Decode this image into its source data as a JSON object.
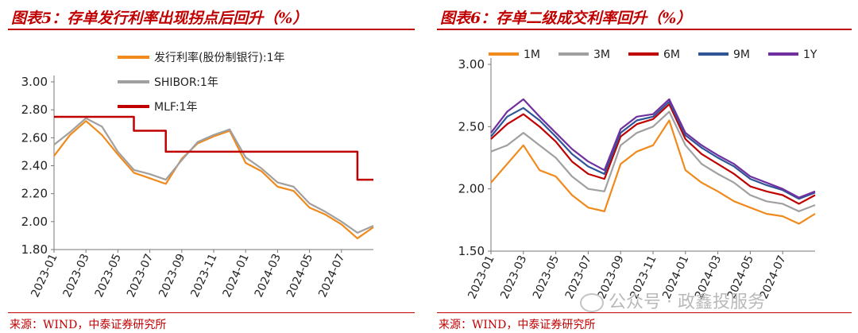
{
  "left": {
    "title": "图表5：存单发行利率出现拐点后回升（%）",
    "source": "来源：WIND，中泰证券研究所"
  },
  "right": {
    "title": "图表6：存单二级成交利率回升（%）",
    "source": "来源：WIND，中泰证券研究所"
  },
  "watermark": "公众号 · 政鑫投服务",
  "chart_data": [
    {
      "type": "line",
      "ylim": [
        1.8,
        3.0
      ],
      "yticks": [
        "1.80",
        "2.00",
        "2.20",
        "2.40",
        "2.60",
        "2.80",
        "3.00"
      ],
      "xticks": [
        "2023-01",
        "2023-03",
        "2023-05",
        "2023-07",
        "2023-09",
        "2023-11",
        "2024-01",
        "2024-03",
        "2024-05",
        "2024-07"
      ],
      "x": [
        "2023-01",
        "2023-02",
        "2023-03",
        "2023-04",
        "2023-05",
        "2023-06",
        "2023-07",
        "2023-08",
        "2023-09",
        "2023-10",
        "2023-11",
        "2023-12",
        "2024-01",
        "2024-02",
        "2024-03",
        "2024-04",
        "2024-05",
        "2024-06",
        "2024-07",
        "2024-08",
        "2024-09"
      ],
      "series": [
        {
          "name": "发行利率(股份制银行):1年",
          "color": "#f08a1c",
          "values": [
            2.47,
            2.62,
            2.72,
            2.62,
            2.48,
            2.35,
            2.31,
            2.27,
            2.45,
            2.56,
            2.61,
            2.65,
            2.42,
            2.36,
            2.25,
            2.22,
            2.1,
            2.05,
            1.98,
            1.88,
            1.96
          ]
        },
        {
          "name": "SHIBOR:1年",
          "color": "#a0a0a0",
          "values": [
            2.55,
            2.64,
            2.74,
            2.68,
            2.5,
            2.37,
            2.34,
            2.3,
            2.44,
            2.57,
            2.62,
            2.66,
            2.46,
            2.38,
            2.28,
            2.25,
            2.13,
            2.07,
            2.0,
            1.92,
            1.97
          ]
        },
        {
          "name": "MLF:1年",
          "color": "#c00000",
          "values": [
            2.75,
            2.75,
            2.75,
            2.75,
            2.75,
            2.65,
            2.65,
            2.5,
            2.5,
            2.5,
            2.5,
            2.5,
            2.5,
            2.5,
            2.5,
            2.5,
            2.5,
            2.5,
            2.5,
            2.3,
            2.3
          ]
        }
      ]
    },
    {
      "type": "line",
      "ylim": [
        1.5,
        3.0
      ],
      "yticks": [
        "1.50",
        "2.00",
        "2.50",
        "3.00"
      ],
      "xticks": [
        "2023-01",
        "2023-03",
        "2023-05",
        "2023-07",
        "2023-09",
        "2023-11",
        "2024-01",
        "2024-03",
        "2024-05",
        "2024-07"
      ],
      "x": [
        "2023-01",
        "2023-02",
        "2023-03",
        "2023-04",
        "2023-05",
        "2023-06",
        "2023-07",
        "2023-08",
        "2023-09",
        "2023-10",
        "2023-11",
        "2023-12",
        "2024-01",
        "2024-02",
        "2024-03",
        "2024-04",
        "2024-05",
        "2024-06",
        "2024-07",
        "2024-08",
        "2024-09"
      ],
      "series": [
        {
          "name": "1M",
          "color": "#f08a1c",
          "values": [
            2.05,
            2.2,
            2.35,
            2.15,
            2.1,
            1.95,
            1.85,
            1.82,
            2.2,
            2.3,
            2.35,
            2.55,
            2.15,
            2.05,
            1.98,
            1.9,
            1.85,
            1.8,
            1.78,
            1.72,
            1.8
          ]
        },
        {
          "name": "3M",
          "color": "#a0a0a0",
          "values": [
            2.3,
            2.35,
            2.45,
            2.35,
            2.25,
            2.1,
            2.0,
            1.98,
            2.35,
            2.45,
            2.5,
            2.62,
            2.35,
            2.2,
            2.12,
            2.05,
            1.95,
            1.9,
            1.88,
            1.82,
            1.87
          ]
        },
        {
          "name": "6M",
          "color": "#c00000",
          "values": [
            2.4,
            2.52,
            2.6,
            2.5,
            2.38,
            2.22,
            2.12,
            2.08,
            2.42,
            2.52,
            2.56,
            2.68,
            2.4,
            2.28,
            2.2,
            2.12,
            2.02,
            1.98,
            1.95,
            1.88,
            1.95
          ]
        },
        {
          "name": "9M",
          "color": "#2f5597",
          "values": [
            2.42,
            2.58,
            2.65,
            2.55,
            2.42,
            2.28,
            2.18,
            2.12,
            2.45,
            2.55,
            2.58,
            2.7,
            2.43,
            2.33,
            2.25,
            2.18,
            2.08,
            2.03,
            1.99,
            1.92,
            1.97
          ]
        },
        {
          "name": "1Y",
          "color": "#7030a0",
          "values": [
            2.45,
            2.62,
            2.72,
            2.58,
            2.45,
            2.32,
            2.22,
            2.15,
            2.48,
            2.58,
            2.6,
            2.72,
            2.45,
            2.35,
            2.27,
            2.2,
            2.1,
            2.05,
            2.0,
            1.93,
            1.98
          ]
        }
      ]
    }
  ]
}
